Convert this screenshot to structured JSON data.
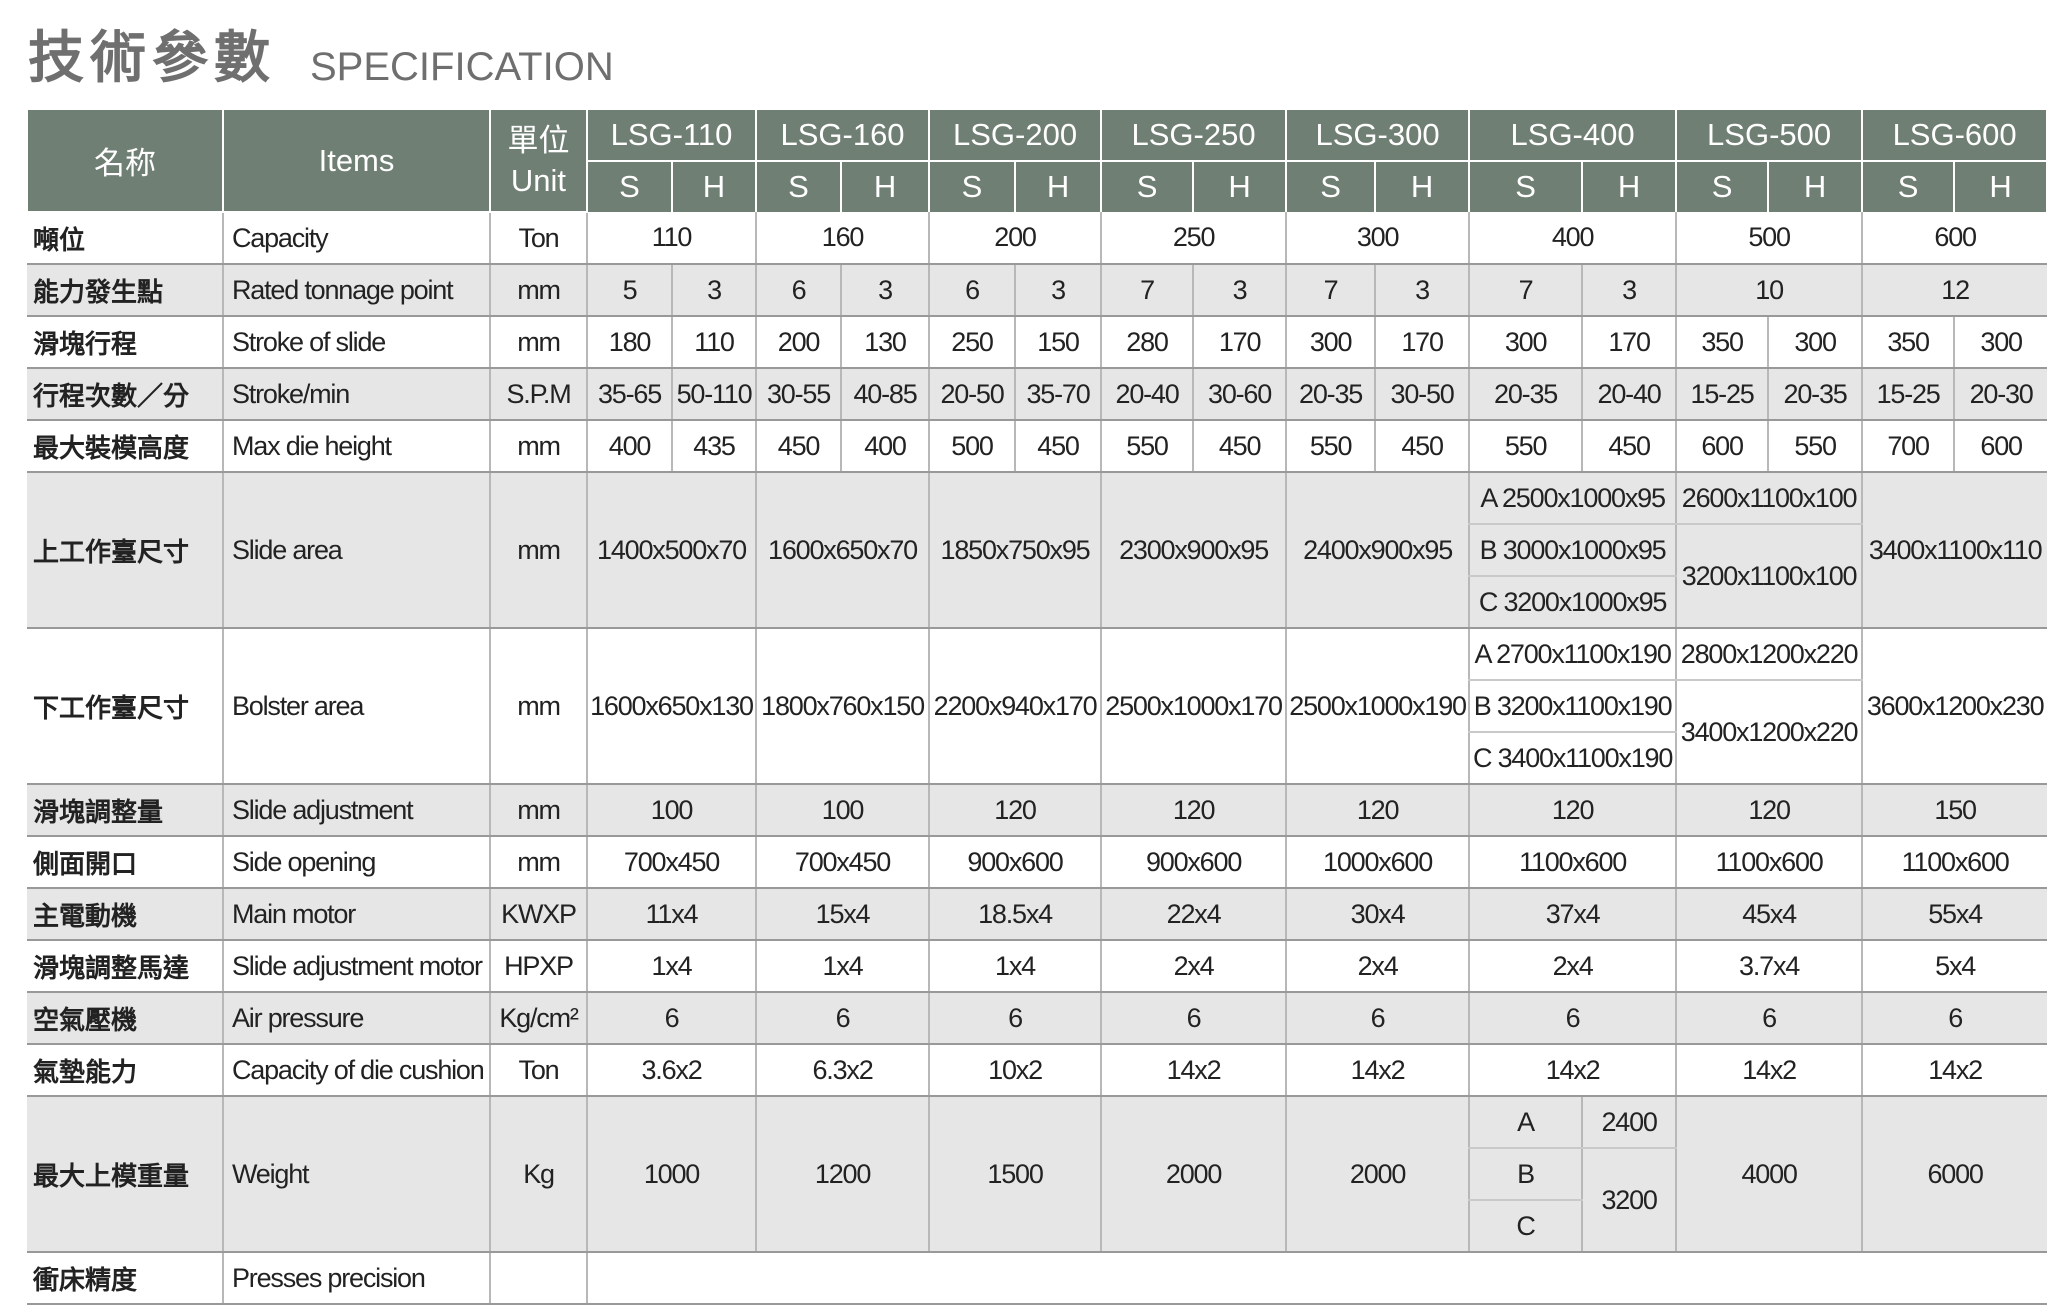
{
  "header": {
    "title_zh": "技術參數",
    "title_en": "SPECIFICATION"
  },
  "table": {
    "columns": {
      "name_zh": "名称",
      "items": "Items",
      "unit_zh": "單位",
      "unit_en": "Unit",
      "models": [
        {
          "name": "LSG-110",
          "variants": [
            "S",
            "H"
          ]
        },
        {
          "name": "LSG-160",
          "variants": [
            "S",
            "H"
          ]
        },
        {
          "name": "LSG-200",
          "variants": [
            "S",
            "H"
          ]
        },
        {
          "name": "LSG-250",
          "variants": [
            "S",
            "H"
          ]
        },
        {
          "name": "LSG-300",
          "variants": [
            "S",
            "H"
          ]
        },
        {
          "name": "LSG-400",
          "variants": [
            "S",
            "H"
          ]
        },
        {
          "name": "LSG-500",
          "variants": [
            "S",
            "H"
          ]
        },
        {
          "name": "LSG-600",
          "variants": [
            "S",
            "H"
          ]
        }
      ]
    },
    "rows": [
      {
        "zh": "噸位",
        "en": "Capacity",
        "unit": "Ton",
        "values": [
          110,
          160,
          200,
          250,
          300,
          400,
          500,
          600
        ]
      },
      {
        "zh": "能力發生點",
        "en": "Rated tonnage point",
        "unit": "mm",
        "values": [
          5,
          3,
          6,
          3,
          6,
          3,
          7,
          3,
          7,
          3,
          7,
          3,
          10,
          12
        ]
      },
      {
        "zh": "滑塊行程",
        "en": "Stroke of slide",
        "unit": "mm",
        "values": [
          180,
          110,
          200,
          130,
          250,
          150,
          280,
          170,
          300,
          170,
          300,
          170,
          350,
          300,
          350,
          300
        ]
      },
      {
        "zh": "行程次數／分",
        "en": "Stroke/min",
        "unit": "S.P.M",
        "values": [
          "35-65",
          "50-110",
          "30-55",
          "40-85",
          "20-50",
          "35-70",
          "20-40",
          "30-60",
          "20-35",
          "30-50",
          "20-35",
          "20-40",
          "15-25",
          "20-35",
          "15-25",
          "20-30"
        ]
      },
      {
        "zh": "最大裝模高度",
        "en": "Max die height",
        "unit": "mm",
        "values": [
          400,
          435,
          450,
          400,
          500,
          450,
          550,
          450,
          550,
          450,
          550,
          450,
          600,
          550,
          700,
          600
        ]
      },
      {
        "zh": "上工作臺尺寸",
        "en": "Slide area",
        "unit": "mm",
        "values": [
          "1400x500x70",
          "1600x650x70",
          "1850x750x95",
          "2300x900x95",
          "2400x900x95",
          [
            "A 2500x1000x95",
            "B 3000x1000x95",
            "C 3200x1000x95"
          ],
          [
            "2600x1100x100",
            "3200x1100x100"
          ],
          "3400x1100x110"
        ]
      },
      {
        "zh": "下工作臺尺寸",
        "en": "Bolster area",
        "unit": "mm",
        "values": [
          "1600x650x130",
          "1800x760x150",
          "2200x940x170",
          "2500x1000x170",
          "2500x1000x190",
          [
            "A 2700x1100x190",
            "B 3200x1100x190",
            "C 3400x1100x190"
          ],
          [
            "2800x1200x220",
            "3400x1200x220"
          ],
          "3600x1200x230"
        ]
      },
      {
        "zh": "滑塊調整量",
        "en": "Slide adjustment",
        "unit": "mm",
        "values": [
          100,
          100,
          120,
          120,
          120,
          120,
          120,
          150
        ]
      },
      {
        "zh": "側面開口",
        "en": "Side opening",
        "unit": "mm",
        "values": [
          "700x450",
          "700x450",
          "900x600",
          "900x600",
          "1000x600",
          "1100x600",
          "1100x600",
          "1100x600"
        ]
      },
      {
        "zh": "主電動機",
        "en": "Main motor",
        "unit": "KWXP",
        "values": [
          "11x4",
          "15x4",
          "18.5x4",
          "22x4",
          "30x4",
          "37x4",
          "45x4",
          "55x4"
        ]
      },
      {
        "zh": "滑塊調整馬達",
        "en": "Slide adjustment motor",
        "unit": "HPXP",
        "values": [
          "1x4",
          "1x4",
          "1x4",
          "2x4",
          "2x4",
          "2x4",
          "3.7x4",
          "5x4"
        ]
      },
      {
        "zh": "空氣壓機",
        "en": "Air pressure",
        "unit": "Kg/cm²",
        "values": [
          6,
          6,
          6,
          6,
          6,
          6,
          6,
          6
        ]
      },
      {
        "zh": "氣墊能力",
        "en": "Capacity of die cushion",
        "unit": "Ton",
        "values": [
          "3.6x2",
          "6.3x2",
          "10x2",
          "14x2",
          "14x2",
          "14x2",
          "14x2",
          "14x2"
        ]
      },
      {
        "zh": "最大上模重量",
        "en": "Weight",
        "unit": "Kg",
        "values": [
          1000,
          1200,
          1500,
          2000,
          2000,
          {
            "labels": [
              "A",
              "B",
              "C"
            ],
            "values": [
              2400,
              3200
            ]
          },
          4000,
          6000
        ]
      },
      {
        "zh": "衝床精度",
        "en": "Presses precision"
      }
    ]
  }
}
